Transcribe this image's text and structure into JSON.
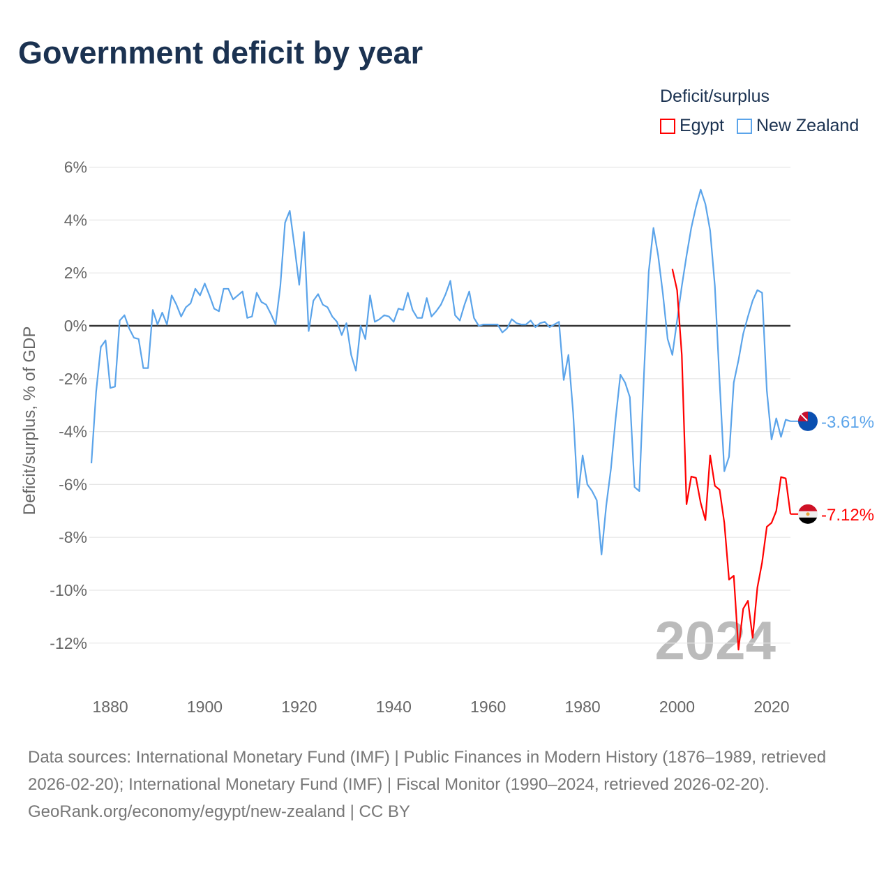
{
  "chart_data": {
    "type": "line",
    "title": "Government deficit by year",
    "ylabel": "Deficit/surplus, % of GDP",
    "xlabel": "",
    "legend_title": "Deficit/surplus",
    "legend_placement": "top-right",
    "year_watermark": "2024",
    "ylim": [
      -14,
      6
    ],
    "xlim": [
      1876,
      2024
    ],
    "yticks": [
      6,
      4,
      2,
      0,
      -2,
      -4,
      -6,
      -8,
      -10,
      -12
    ],
    "ytick_labels": [
      "6%",
      "4%",
      "2%",
      "0%",
      "-2%",
      "-4%",
      "-6%",
      "-8%",
      "-10%",
      "-12%"
    ],
    "xticks": [
      1880,
      1900,
      1920,
      1940,
      1960,
      1980,
      2000,
      2020
    ],
    "xtick_labels": [
      "1880",
      "1900",
      "1920",
      "1940",
      "1960",
      "1980",
      "2000",
      "2020"
    ],
    "grid": true,
    "series": [
      {
        "name": "Egypt",
        "color": "#ff0000",
        "end_label": "-7.12%",
        "x_start": 1999,
        "values": [
          2.15,
          1.35,
          -1.1,
          -6.75,
          -5.7,
          -5.75,
          -6.7,
          -7.35,
          -4.9,
          -6.05,
          -6.2,
          -7.45,
          -9.6,
          -9.45,
          -12.25,
          -10.7,
          -10.4,
          -11.8,
          -9.9,
          -8.95,
          -7.6,
          -7.45,
          -7.0,
          -5.72,
          -5.77,
          -7.12
        ]
      },
      {
        "name": "New Zealand",
        "color": "#5ba4ea",
        "end_label": "-3.61%",
        "x_start": 1876,
        "values": [
          -5.2,
          -2.5,
          -0.8,
          -0.55,
          -2.35,
          -2.3,
          0.2,
          0.4,
          -0.1,
          -0.45,
          -0.5,
          -1.6,
          -1.6,
          0.6,
          0.05,
          0.5,
          0.05,
          1.15,
          0.8,
          0.35,
          0.7,
          0.85,
          1.4,
          1.15,
          1.6,
          1.15,
          0.65,
          0.55,
          1.4,
          1.4,
          1.0,
          1.15,
          1.3,
          0.3,
          0.35,
          1.25,
          0.9,
          0.8,
          0.45,
          0.05,
          1.5,
          3.9,
          4.35,
          3.0,
          1.55,
          3.55,
          -0.2,
          0.95,
          1.2,
          0.8,
          0.7,
          0.35,
          0.15,
          -0.35,
          0.1,
          -1.1,
          -1.7,
          0,
          -0.5,
          1.15,
          0.15,
          0.25,
          0.4,
          0.35,
          0.15,
          0.65,
          0.6,
          1.25,
          0.6,
          0.3,
          0.3,
          1.05,
          0.35,
          0.55,
          0.8,
          1.2,
          1.7,
          0.4,
          0.2,
          0.8,
          1.3,
          0.3,
          0,
          0.05,
          0.05,
          0.05,
          0.05,
          -0.25,
          -0.1,
          0.25,
          0.1,
          0.05,
          0.05,
          0.2,
          -0.05,
          0.1,
          0.15,
          -0.05,
          0.05,
          0.15,
          -2.05,
          -1.1,
          -3.3,
          -6.5,
          -4.9,
          -6.0,
          -6.25,
          -6.6,
          -8.65,
          -6.8,
          -5.4,
          -3.5,
          -1.85,
          -2.15,
          -2.7,
          -6.1,
          -6.25,
          -1.8,
          2.05,
          3.7,
          2.65,
          1.2,
          -0.5,
          -1.1,
          0.2,
          1.5,
          2.65,
          3.7,
          4.5,
          5.15,
          4.6,
          3.6,
          1.5,
          -2.1,
          -5.5,
          -4.95,
          -2.15,
          -1.3,
          -0.3,
          0.35,
          0.95,
          1.35,
          1.25,
          -2.45,
          -4.3,
          -3.5,
          -4.2,
          -3.55,
          -3.61
        ]
      }
    ]
  },
  "footer": {
    "sources": "Data sources: International Monetary Fund (IMF) | Public Finances in Modern History (1876–1989, retrieved 2026-02-20); International Monetary Fund (IMF) | Fiscal Monitor (1990–2024, retrieved 2026-02-20).",
    "link": "GeoRank.org/economy/egypt/new-zealand | CC BY"
  }
}
